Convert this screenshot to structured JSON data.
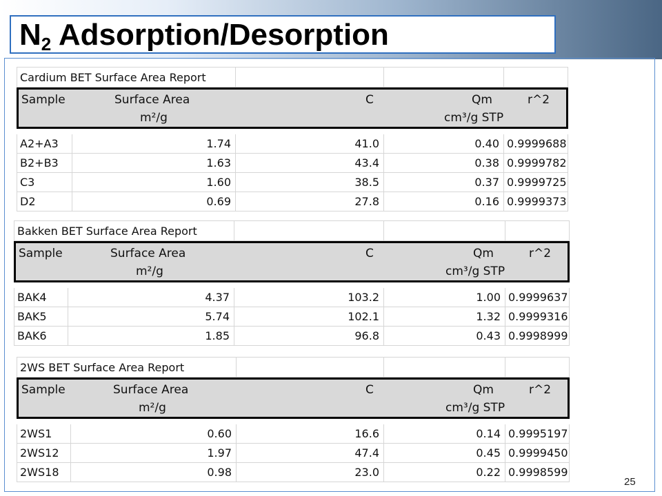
{
  "slide": {
    "title_main": "N",
    "title_sub": "2",
    "title_rest": " Adsorption/Desorption",
    "page_number": "25"
  },
  "columns": {
    "sample": "Sample",
    "surface_area": "Surface Area",
    "surface_area_unit": "m²/g",
    "c": "C",
    "qm": "Qm",
    "qm_unit": "cm³/g STP",
    "r2": "r^2"
  },
  "tables": [
    {
      "title": "Cardium BET Surface Area Report",
      "rows": [
        {
          "sample": "A2+A3",
          "surface_area": "1.74",
          "c": "41.0",
          "qm": "0.40",
          "r2": "0.9999688"
        },
        {
          "sample": "B2+B3",
          "surface_area": "1.63",
          "c": "43.4",
          "qm": "0.38",
          "r2": "0.9999782"
        },
        {
          "sample": "C3",
          "surface_area": "1.60",
          "c": "38.5",
          "qm": "0.37",
          "r2": "0.9999725"
        },
        {
          "sample": "D2",
          "surface_area": "0.69",
          "c": "27.8",
          "qm": "0.16",
          "r2": "0.9999373"
        }
      ]
    },
    {
      "title": "Bakken BET Surface Area Report",
      "rows": [
        {
          "sample": "BAK4",
          "surface_area": "4.37",
          "c": "103.2",
          "qm": "1.00",
          "r2": "0.9999637"
        },
        {
          "sample": "BAK5",
          "surface_area": "5.74",
          "c": "102.1",
          "qm": "1.32",
          "r2": "0.9999316"
        },
        {
          "sample": "BAK6",
          "surface_area": "1.85",
          "c": "96.8",
          "qm": "0.43",
          "r2": "0.9998999"
        }
      ]
    },
    {
      "title": "2WS BET Surface Area Report",
      "rows": [
        {
          "sample": "2WS1",
          "surface_area": "0.60",
          "c": "16.6",
          "qm": "0.14",
          "r2": "0.9995197"
        },
        {
          "sample": "2WS12",
          "surface_area": "1.97",
          "c": "47.4",
          "qm": "0.45",
          "r2": "0.9999450"
        },
        {
          "sample": "2WS18",
          "surface_area": "0.98",
          "c": "23.0",
          "qm": "0.22",
          "r2": "0.9998599"
        }
      ]
    }
  ]
}
